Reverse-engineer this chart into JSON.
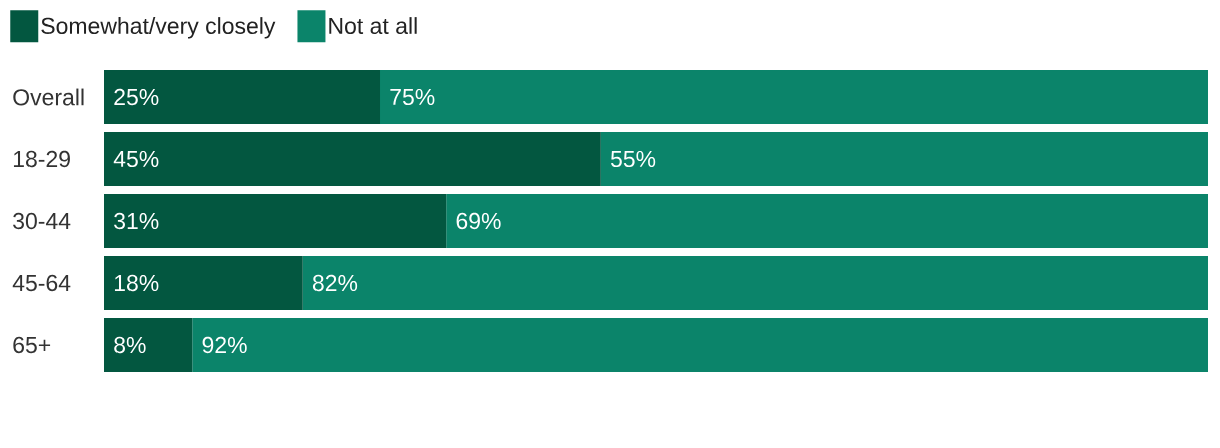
{
  "chart_data": {
    "type": "bar",
    "orientation": "horizontal",
    "stacked": true,
    "categories": [
      "Overall",
      "18-29",
      "30-44",
      "45-64",
      "65+"
    ],
    "series": [
      {
        "name": "Somewhat/very closely",
        "color": "#035740",
        "values": [
          25,
          45,
          31,
          18,
          8
        ],
        "value_labels": [
          "25%",
          "45%",
          "31%",
          "18%",
          "8%"
        ]
      },
      {
        "name": "Not at all",
        "color": "#0b846a",
        "values": [
          75,
          55,
          69,
          82,
          92
        ],
        "value_labels": [
          "75%",
          "55%",
          "69%",
          "82%",
          "92%"
        ]
      }
    ],
    "xlim": [
      0,
      100
    ],
    "legend": "top left",
    "tick_labels": "y"
  }
}
